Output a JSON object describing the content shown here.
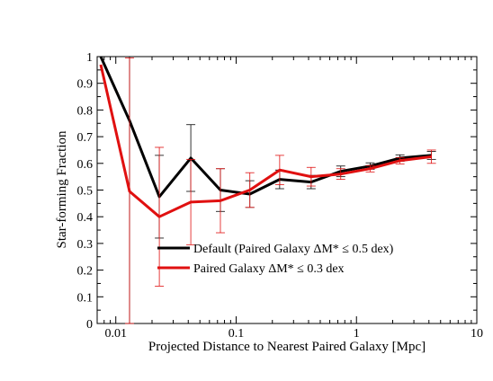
{
  "chart_data": {
    "type": "line",
    "title": "",
    "xlabel": "Projected Distance to Nearest Paired Galaxy [Mpc]",
    "ylabel": "Star-forming Fraction",
    "xscale": "log",
    "xlim": [
      0.007,
      10
    ],
    "ylim": [
      0,
      1
    ],
    "grid": false,
    "legend_position": "lower-center",
    "x_ticks": [
      0.01,
      0.1,
      1,
      10
    ],
    "x_tick_labels": [
      "0.01",
      "0.1",
      "1",
      "10"
    ],
    "y_ticks": [
      0,
      0.1,
      0.2,
      0.3,
      0.4,
      0.5,
      0.6,
      0.7,
      0.8,
      0.9,
      1
    ],
    "y_tick_labels": [
      "0",
      "0.1",
      "0.2",
      "0.3",
      "0.4",
      "0.5",
      "0.6",
      "0.7",
      "0.8",
      "0.9",
      "1"
    ],
    "series": [
      {
        "name": "Default (Paired Galaxy ΔM* ≤ 0.5 dex)",
        "color": "#000000",
        "points": [
          {
            "x": 0.0075,
            "y": 1.0,
            "err": 0
          },
          {
            "x": 0.013,
            "y": 0.76,
            "err": 1.0
          },
          {
            "x": 0.023,
            "y": 0.475,
            "err": 0.155
          },
          {
            "x": 0.042,
            "y": 0.62,
            "err": 0.125
          },
          {
            "x": 0.074,
            "y": 0.5,
            "err": 0.08
          },
          {
            "x": 0.13,
            "y": 0.485,
            "err": 0.05
          },
          {
            "x": 0.23,
            "y": 0.54,
            "err": 0.035
          },
          {
            "x": 0.42,
            "y": 0.53,
            "err": 0.025
          },
          {
            "x": 0.74,
            "y": 0.57,
            "err": 0.02
          },
          {
            "x": 1.3,
            "y": 0.59,
            "err": 0.012
          },
          {
            "x": 2.3,
            "y": 0.62,
            "err": 0.012
          },
          {
            "x": 4.2,
            "y": 0.63,
            "err": 0.015
          }
        ]
      },
      {
        "name": "Paired Galaxy ΔM* ≤ 0.3 dex",
        "color": "#e01010",
        "points": [
          {
            "x": 0.0075,
            "y": 0.97,
            "err": 0
          },
          {
            "x": 0.013,
            "y": 0.495,
            "err": 0.5
          },
          {
            "x": 0.023,
            "y": 0.4,
            "err": 0.26
          },
          {
            "x": 0.042,
            "y": 0.455,
            "err": 0.16
          },
          {
            "x": 0.074,
            "y": 0.46,
            "err": 0.12
          },
          {
            "x": 0.13,
            "y": 0.5,
            "err": 0.065
          },
          {
            "x": 0.23,
            "y": 0.575,
            "err": 0.055
          },
          {
            "x": 0.42,
            "y": 0.55,
            "err": 0.035
          },
          {
            "x": 0.74,
            "y": 0.56,
            "err": 0.02
          },
          {
            "x": 1.3,
            "y": 0.58,
            "err": 0.012
          },
          {
            "x": 2.3,
            "y": 0.61,
            "err": 0.012
          },
          {
            "x": 4.2,
            "y": 0.625,
            "err": 0.025
          }
        ]
      }
    ]
  }
}
